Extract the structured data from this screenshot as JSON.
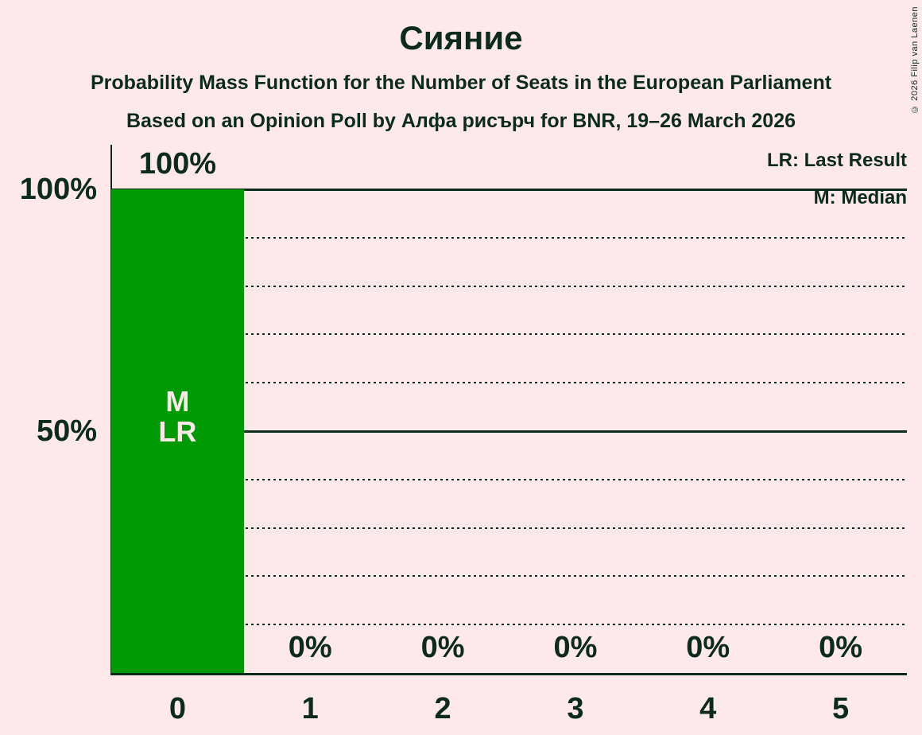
{
  "page": {
    "copyright": "© 2026 Filip van Laenen"
  },
  "header": {
    "title": "Сияние",
    "subtitle": "Probability Mass Function for the Number of Seats in the European Parliament",
    "poll_details": "Based on an Opinion Poll by Алфа рисърч for BNR, 19–26 March 2026"
  },
  "legend": {
    "last_result": "LR: Last Result",
    "median": "M: Median"
  },
  "colors": {
    "background": "#fce9e8",
    "bar": "#009a06",
    "text": "#0d2b1c",
    "bar_annotation_text": "#fce9e8"
  },
  "chart_data": {
    "type": "bar",
    "title": "Сияние",
    "subtitle": "Probability Mass Function for the Number of Seats in the European Parliament",
    "source_line": "Based on an Opinion Poll by Алфа рисърч for BNR, 19–26 March 2026",
    "categories": [
      "0",
      "1",
      "2",
      "3",
      "4",
      "5"
    ],
    "values": [
      100,
      0,
      0,
      0,
      0,
      0
    ],
    "value_labels": [
      "100%",
      "0%",
      "0%",
      "0%",
      "0%",
      "0%"
    ],
    "xlabel": "",
    "ylabel": "",
    "ylim": [
      0,
      100
    ],
    "y_axis": {
      "ticks": [
        {
          "value": 100,
          "label": "100%"
        },
        {
          "value": 50,
          "label": "50%"
        }
      ],
      "solid_gridlines": [
        100,
        50
      ],
      "dotted_gridlines": [
        90,
        80,
        70,
        60,
        40,
        30,
        20,
        10
      ]
    },
    "legend_entries": [
      "LR: Last Result",
      "M: Median"
    ],
    "legend_position": "top-right",
    "grid": "horizontal-only",
    "bar_annotations": [
      {
        "category": "0",
        "lines": [
          "M",
          "LR"
        ]
      }
    ]
  }
}
